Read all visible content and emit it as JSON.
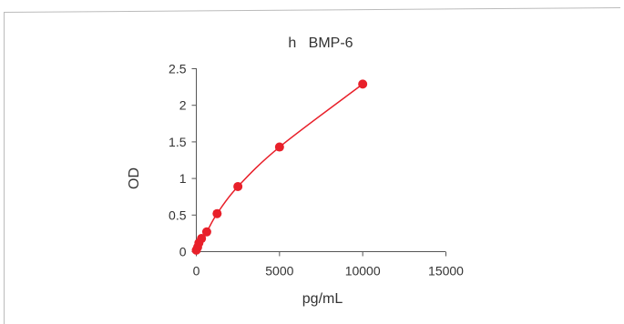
{
  "chart_data": {
    "type": "scatter",
    "title": "h   BMP-6",
    "xlabel": "pg/mL",
    "ylabel": "OD",
    "xlim": [
      0,
      15000
    ],
    "ylim": [
      0,
      2.5
    ],
    "x_ticks": [
      "0",
      "5000",
      "10000",
      "15000"
    ],
    "y_ticks": [
      "0",
      "0.5",
      "1",
      "1.5",
      "2",
      "2.5"
    ],
    "grid": false,
    "legend": "none",
    "colors": {
      "series": "#e8202a",
      "axis": "#555555",
      "frame": "#bbbbbb",
      "text": "#333333"
    },
    "series": [
      {
        "x": [
          0,
          78,
          156,
          312,
          625,
          1250,
          2500,
          5000,
          10000
        ],
        "values": [
          0.02,
          0.06,
          0.12,
          0.18,
          0.27,
          0.52,
          0.89,
          1.43,
          2.29
        ]
      }
    ]
  }
}
